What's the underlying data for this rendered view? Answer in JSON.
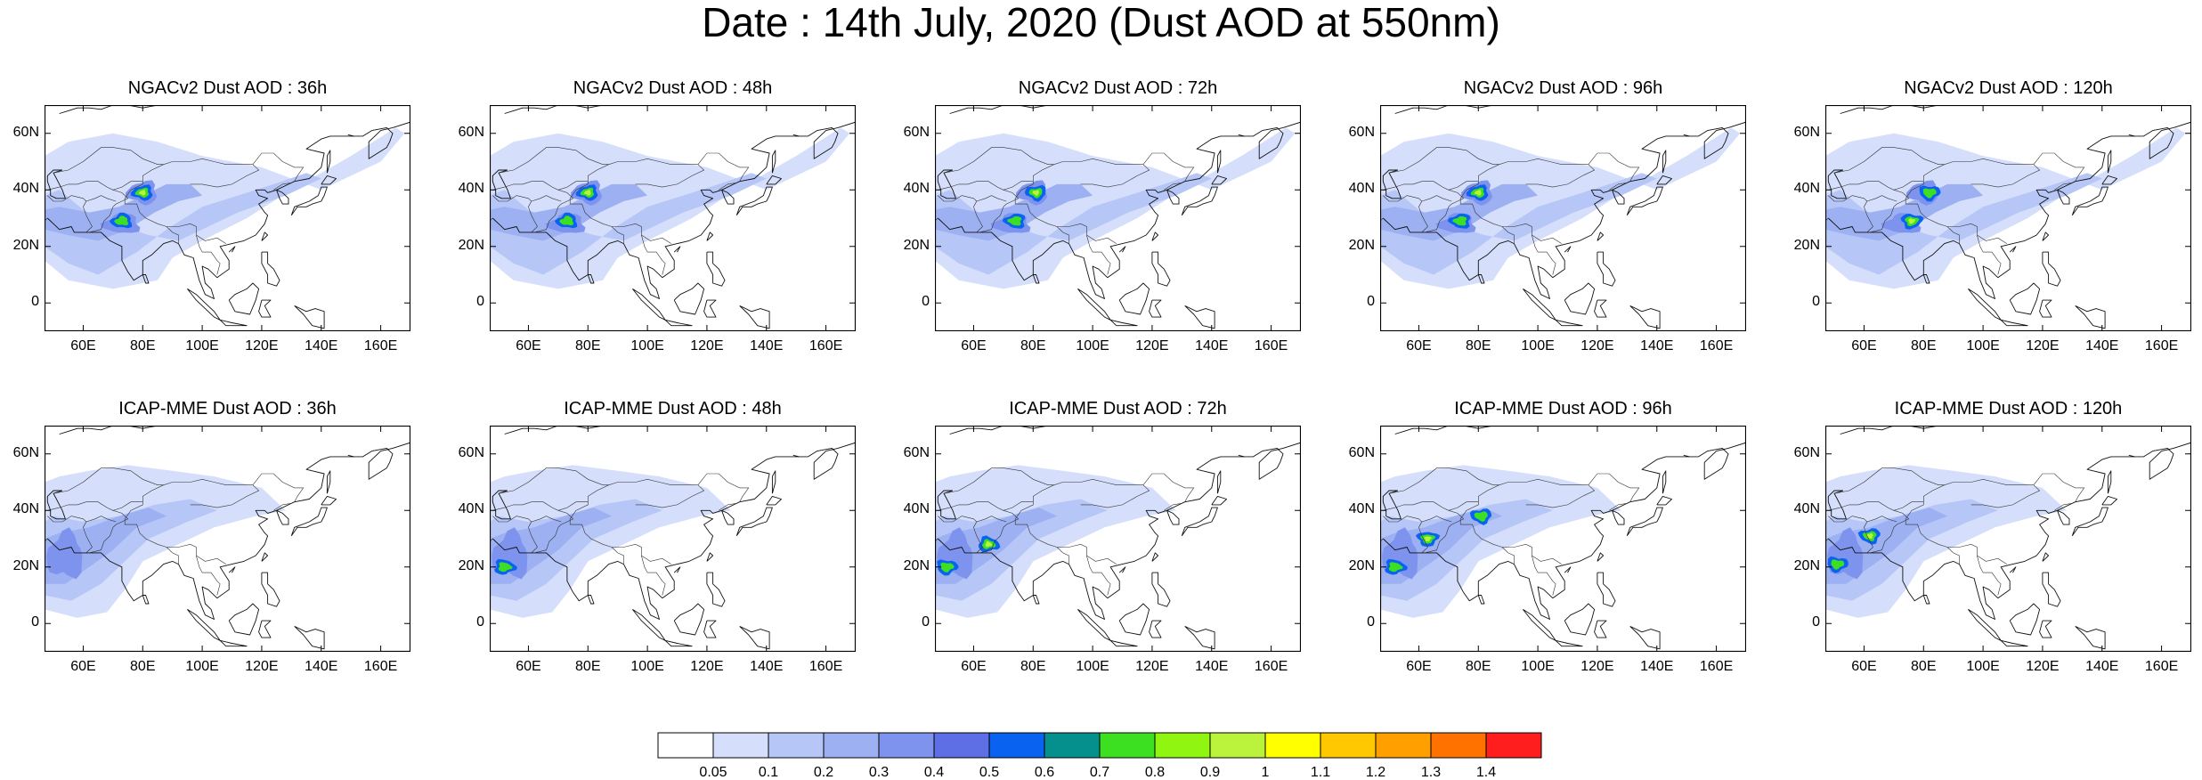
{
  "title": "Date : 14th July, 2020 (Dust AOD at 550nm)",
  "map": {
    "lat_ticks": [
      "60N",
      "40N",
      "20N",
      "0"
    ],
    "lon_ticks": [
      "60E",
      "80E",
      "100E",
      "120E",
      "140E",
      "160E"
    ]
  },
  "panels": [
    {
      "title": "NGACv2 Dust AOD : 36h",
      "model": "NGACv2",
      "lead": "36h",
      "hotspots": [
        [
          80,
          39,
          1.0
        ],
        [
          73,
          29,
          0.8
        ]
      ]
    },
    {
      "title": "NGACv2 Dust AOD : 48h",
      "model": "NGACv2",
      "lead": "48h",
      "hotspots": [
        [
          80,
          39,
          1.0
        ],
        [
          73,
          29,
          0.8
        ]
      ]
    },
    {
      "title": "NGACv2 Dust AOD : 72h",
      "model": "NGACv2",
      "lead": "72h",
      "hotspots": [
        [
          81,
          39,
          1.0
        ],
        [
          74,
          29,
          0.8
        ]
      ]
    },
    {
      "title": "NGACv2 Dust AOD : 96h",
      "model": "NGACv2",
      "lead": "96h",
      "hotspots": [
        [
          80,
          39,
          0.9
        ],
        [
          74,
          29,
          0.8
        ]
      ]
    },
    {
      "title": "NGACv2 Dust AOD : 120h",
      "model": "NGACv2",
      "lead": "120h",
      "hotspots": [
        [
          82,
          39,
          0.8
        ],
        [
          76,
          29,
          0.9
        ]
      ]
    },
    {
      "title": "ICAP-MME Dust AOD : 36h",
      "model": "ICAP-MME",
      "lead": "36h",
      "hotspots": []
    },
    {
      "title": "ICAP-MME Dust AOD : 48h",
      "model": "ICAP-MME",
      "lead": "48h",
      "hotspots": [
        [
          52,
          20,
          0.6
        ]
      ]
    },
    {
      "title": "ICAP-MME Dust AOD : 72h",
      "model": "ICAP-MME",
      "lead": "72h",
      "hotspots": [
        [
          65,
          28,
          0.9
        ],
        [
          51,
          20,
          0.6
        ]
      ]
    },
    {
      "title": "ICAP-MME Dust AOD : 96h",
      "model": "ICAP-MME",
      "lead": "96h",
      "hotspots": [
        [
          63,
          30,
          1.0
        ],
        [
          52,
          20,
          0.8
        ],
        [
          81,
          38,
          0.8
        ]
      ]
    },
    {
      "title": "ICAP-MME Dust AOD : 120h",
      "model": "ICAP-MME",
      "lead": "120h",
      "hotspots": [
        [
          62,
          31,
          0.9
        ],
        [
          51,
          21,
          0.8
        ]
      ]
    }
  ],
  "colorbar": {
    "labels": [
      "0.05",
      "0.1",
      "0.2",
      "0.3",
      "0.4",
      "0.5",
      "0.6",
      "0.7",
      "0.8",
      "0.9",
      "1",
      "1.1",
      "1.2",
      "1.3",
      "1.4"
    ],
    "colors": [
      "#ffffff",
      "#d5dffb",
      "#b6c6f7",
      "#9cb0f2",
      "#7e93ee",
      "#5e6ee5",
      "#0a62f0",
      "#05908e",
      "#3de020",
      "#8ff511",
      "#bbf23b",
      "#ffff00",
      "#ffc800",
      "#ff9f00",
      "#ff7200",
      "#ff1e1e"
    ]
  }
}
